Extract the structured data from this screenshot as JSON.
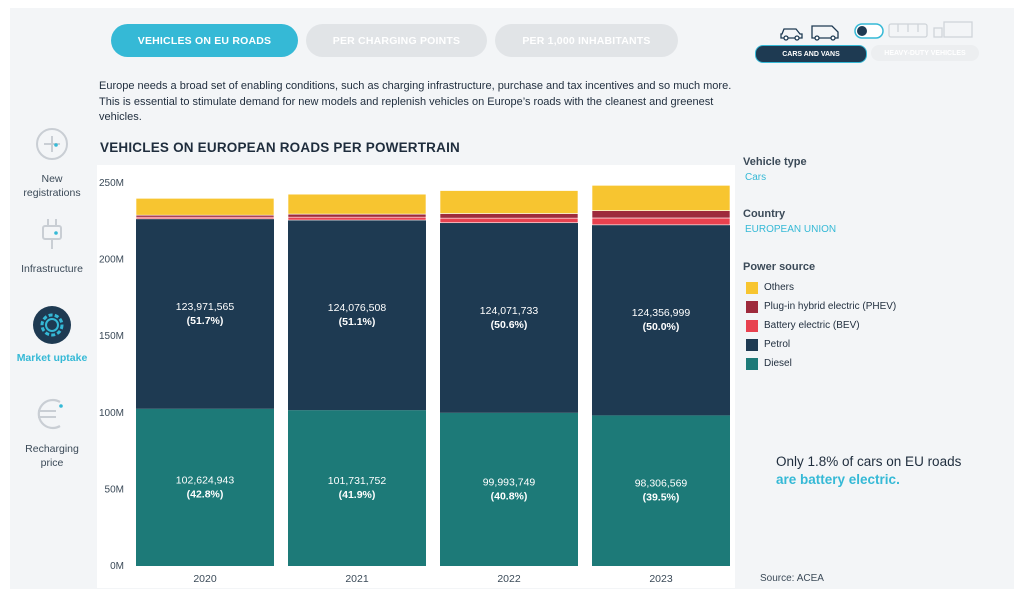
{
  "tabs": [
    {
      "label": "VEHICLES ON EU ROADS",
      "active": true
    },
    {
      "label": "PER CHARGING POINTS",
      "active": false
    },
    {
      "label": "PER 1,000 INHABITANTS",
      "active": false
    }
  ],
  "vehicle_toggle": {
    "left_label": "CARS AND VANS",
    "right_label": "HEAVY-DUTY VEHICLES"
  },
  "nav": [
    {
      "label": "New registrations",
      "icon": "plus-circle-icon",
      "active": false
    },
    {
      "label": "Infrastructure",
      "icon": "plug-icon",
      "active": false
    },
    {
      "label": "Market uptake",
      "icon": "gear-icon",
      "active": true
    },
    {
      "label": "Recharging price",
      "icon": "euro-icon",
      "active": false
    }
  ],
  "intro_text": "Europe needs a broad set of enabling conditions, such as charging infrastructure, purchase and tax incentives and so much more. This is essential to stimulate demand for new models and replenish vehicles on Europe’s roads with the cleanest and greenest vehicles.",
  "colors": {
    "accent": "#35b9d6",
    "diesel": "#1d7a78",
    "petrol": "#1e3a52",
    "bev": "#e8414f",
    "phev": "#9e2a3c",
    "others": "#f7c530"
  },
  "sidebar": {
    "vehicle_type_label": "Vehicle type",
    "vehicle_type_value": "Cars",
    "country_label": "Country",
    "country_value": "EUROPEAN UNION",
    "power_source_label": "Power source",
    "legend": [
      "Others",
      "Plug-in hybrid electric (PHEV)",
      "Battery electric (BEV)",
      "Petrol",
      "Diesel"
    ]
  },
  "callout": {
    "line1": "Only 1.8% of cars on EU roads",
    "line2": "are battery electric."
  },
  "source": "Source: ACEA",
  "chart_data": {
    "type": "bar",
    "stacked": true,
    "title": "VEHICLES ON EUROPEAN ROADS PER POWERTRAIN",
    "categories": [
      "2020",
      "2021",
      "2022",
      "2023"
    ],
    "ylim": [
      0,
      250000000
    ],
    "yticks": [
      {
        "value": 0,
        "label": "0M"
      },
      {
        "value": 50000000,
        "label": "50M"
      },
      {
        "value": 100000000,
        "label": "100M"
      },
      {
        "value": 150000000,
        "label": "150M"
      },
      {
        "value": 200000000,
        "label": "200M"
      },
      {
        "value": 250000000,
        "label": "250M"
      }
    ],
    "series": [
      {
        "name": "Diesel",
        "values": [
          102624943,
          101731752,
          99993749,
          98306569
        ],
        "labels": [
          "102,624,943",
          "101,731,752",
          "99,993,749",
          "98,306,569"
        ],
        "pct": [
          "(42.8%)",
          "(41.9%)",
          "(40.8%)",
          "(39.5%)"
        ]
      },
      {
        "name": "Petrol",
        "values": [
          123971565,
          124076508,
          124071733,
          124356999
        ],
        "labels": [
          "123,971,565",
          "124,076,508",
          "124,071,733",
          "124,356,999"
        ],
        "pct": [
          "(51.7%)",
          "(51.1%)",
          "(50.6%)",
          "(50.0%)"
        ]
      },
      {
        "name": "Battery electric (BEV)",
        "values": [
          1100000,
          1900000,
          3000000,
          4500000
        ]
      },
      {
        "name": "Plug-in hybrid electric (PHEV)",
        "values": [
          1300000,
          2000000,
          3000000,
          4800000
        ]
      },
      {
        "name": "Others",
        "values": [
          11000000,
          13000000,
          15000000,
          16500000
        ]
      }
    ]
  }
}
